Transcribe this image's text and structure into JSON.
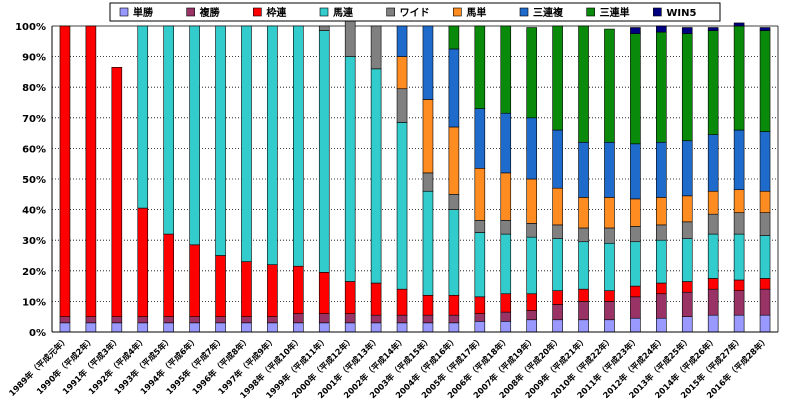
{
  "chart_data": {
    "type": "bar",
    "stacked": true,
    "percent": true,
    "title": "",
    "xlabel": "",
    "ylabel": "",
    "ylim": [
      0,
      100
    ],
    "y_ticks": [
      "0%",
      "10%",
      "20%",
      "30%",
      "40%",
      "50%",
      "60%",
      "70%",
      "80%",
      "90%",
      "100%"
    ],
    "grid": true,
    "legend_position": "top",
    "categories": [
      "1989年（平成元年）",
      "1990年（平成2年）",
      "1991年（平成3年）",
      "1992年（平成4年）",
      "1993年（平成5年）",
      "1994年（平成6年）",
      "1995年（平成7年）",
      "1996年（平成8年）",
      "1997年（平成9年）",
      "1998年（平成10年）",
      "1999年（平成11年）",
      "2000年（平成12年）",
      "2001年（平成13年）",
      "2002年（平成14年）",
      "2003年（平成15年）",
      "2004年（平成16年）",
      "2005年（平成17年）",
      "2006年（平成18年）",
      "2007年（平成19年）",
      "2008年（平成20年）",
      "2009年（平成21年）",
      "2010年（平成22年）",
      "2011年（平成23年）",
      "2012年（平成24年）",
      "2013年（平成25年）",
      "2014年（平成26年）",
      "2015年（平成27年）",
      "2016年（平成28年）"
    ],
    "series": [
      {
        "name": "単勝",
        "color": "#9999ff",
        "values": [
          3,
          3,
          3,
          3,
          3,
          3,
          3,
          3,
          3,
          3,
          3,
          3,
          3,
          3,
          3,
          3,
          3.5,
          3.5,
          4,
          4,
          4,
          4,
          4.5,
          4.5,
          5,
          5.5,
          5.5,
          5.5
        ]
      },
      {
        "name": "複勝",
        "color": "#993366",
        "values": [
          2,
          2,
          2,
          2,
          2,
          2,
          2,
          2,
          2,
          3,
          3,
          3,
          2.5,
          2.5,
          2.5,
          2.5,
          2.5,
          3,
          3,
          5,
          6,
          6,
          7,
          8,
          8,
          8.5,
          8,
          8.5
        ]
      },
      {
        "name": "枠連",
        "color": "#ff0000",
        "values": [
          95,
          95,
          81.5,
          35.5,
          27,
          23.5,
          20,
          18,
          17,
          15.5,
          13.5,
          10.5,
          10.5,
          8.5,
          6.5,
          6.5,
          5.5,
          6,
          5.5,
          4.5,
          4,
          3.5,
          3.5,
          3.5,
          3.5,
          3.5,
          3.5,
          3.5
        ]
      },
      {
        "name": "馬連",
        "color": "#33cccc",
        "values": [
          0,
          0,
          0,
          59.5,
          68,
          71.5,
          75,
          77,
          78,
          78.5,
          79,
          73.5,
          70,
          54.5,
          34,
          28,
          21,
          19.5,
          18.5,
          17,
          15.5,
          15.5,
          14.5,
          14,
          14,
          14.5,
          15,
          14
        ]
      },
      {
        "name": "ワイド",
        "color": "#808080",
        "values": [
          0,
          0,
          0,
          0,
          0,
          0,
          0,
          0,
          0,
          0,
          1.5,
          13,
          14,
          11,
          6,
          5,
          4,
          4.5,
          4.5,
          4.5,
          4.5,
          5,
          5,
          5,
          5.5,
          6.5,
          7,
          7.5
        ]
      },
      {
        "name": "馬単",
        "color": "#ff8c21",
        "values": [
          0,
          0,
          0,
          0,
          0,
          0,
          0,
          0,
          0,
          0,
          0,
          0,
          0,
          10.5,
          24,
          22,
          17,
          15.5,
          14.5,
          12,
          10,
          10,
          9,
          9,
          8.5,
          7.5,
          7.5,
          7
        ]
      },
      {
        "name": "三連複",
        "color": "#1f6bcc",
        "values": [
          0,
          0,
          0,
          0,
          0,
          0,
          0,
          0,
          0,
          0,
          0,
          0,
          0,
          10,
          24,
          25.5,
          19.5,
          19.5,
          20,
          19,
          18,
          18,
          18,
          18,
          18,
          18.5,
          19.5,
          19.5
        ]
      },
      {
        "name": "三連単",
        "color": "#0a8a0a",
        "values": [
          0,
          0,
          0,
          0,
          0,
          0,
          0,
          0,
          0,
          0,
          0,
          0,
          0,
          0,
          0,
          7.5,
          27,
          28.5,
          29.5,
          34,
          38,
          37,
          36,
          36,
          35,
          34,
          34,
          33
        ]
      },
      {
        "name": "WIN5",
        "color": "#000080",
        "values": [
          0,
          0,
          0,
          0,
          0,
          0,
          0,
          0,
          0,
          0,
          0,
          0,
          0,
          0,
          0,
          0,
          0,
          0,
          0,
          0,
          0,
          0,
          2,
          2,
          2,
          1,
          1,
          1
        ]
      }
    ]
  }
}
